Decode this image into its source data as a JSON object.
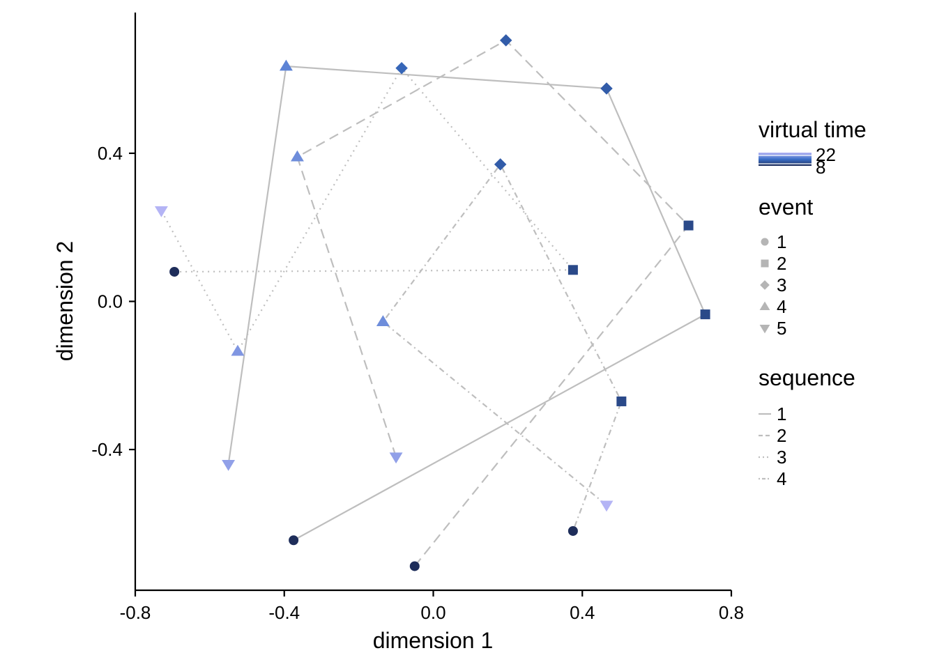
{
  "chart_data": {
    "type": "scatter",
    "xlabel": "dimension 1",
    "ylabel": "dimension 2",
    "xlim": [
      -0.8,
      0.8
    ],
    "ylim": [
      -0.78,
      0.78
    ],
    "x_ticks": [
      -0.8,
      -0.4,
      0.0,
      0.4,
      0.8
    ],
    "x_tick_labels": [
      "-0.8",
      "-0.4",
      "0.0",
      "0.4",
      "0.8"
    ],
    "y_ticks": [
      -0.4,
      0.0,
      0.4
    ],
    "y_tick_labels": [
      "-0.4",
      "0.0",
      "0.4"
    ],
    "grid": false,
    "line_color": "#bebebe",
    "color_scale": {
      "low": 8,
      "high": 22,
      "low_color": "#1e2d5a",
      "mid_color": "#3a6fc8",
      "high_color": "#b4b4f5"
    },
    "series": [
      {
        "name": "1",
        "linetype": "solid",
        "points": [
          {
            "x": -0.375,
            "y": -0.645,
            "event": 1,
            "time": 8
          },
          {
            "x": 0.73,
            "y": -0.035,
            "event": 2,
            "time": 11
          },
          {
            "x": 0.465,
            "y": 0.575,
            "event": 3,
            "time": 13
          },
          {
            "x": -0.395,
            "y": 0.635,
            "event": 4,
            "time": 17
          },
          {
            "x": -0.55,
            "y": -0.44,
            "event": 5,
            "time": 20
          }
        ]
      },
      {
        "name": "2",
        "linetype": "dashed",
        "points": [
          {
            "x": -0.05,
            "y": -0.715,
            "event": 1,
            "time": 8
          },
          {
            "x": 0.685,
            "y": 0.205,
            "event": 2,
            "time": 11
          },
          {
            "x": 0.195,
            "y": 0.705,
            "event": 3,
            "time": 13
          },
          {
            "x": -0.365,
            "y": 0.39,
            "event": 4,
            "time": 18
          },
          {
            "x": -0.1,
            "y": -0.42,
            "event": 5,
            "time": 20
          }
        ]
      },
      {
        "name": "3",
        "linetype": "dotted",
        "points": [
          {
            "x": -0.695,
            "y": 0.08,
            "event": 1,
            "time": 8
          },
          {
            "x": 0.375,
            "y": 0.085,
            "event": 2,
            "time": 11
          },
          {
            "x": -0.085,
            "y": 0.63,
            "event": 3,
            "time": 14
          },
          {
            "x": -0.525,
            "y": -0.135,
            "event": 4,
            "time": 19
          },
          {
            "x": -0.73,
            "y": 0.245,
            "event": 5,
            "time": 22
          }
        ]
      },
      {
        "name": "4",
        "linetype": "dotdash",
        "points": [
          {
            "x": 0.375,
            "y": -0.62,
            "event": 1,
            "time": 8
          },
          {
            "x": 0.505,
            "y": -0.27,
            "event": 2,
            "time": 11
          },
          {
            "x": 0.18,
            "y": 0.37,
            "event": 3,
            "time": 13
          },
          {
            "x": -0.135,
            "y": -0.055,
            "event": 4,
            "time": 18
          },
          {
            "x": 0.465,
            "y": -0.55,
            "event": 5,
            "time": 22
          }
        ]
      }
    ],
    "legend": {
      "position": "right",
      "color_title": "virtual time",
      "color_labels": [
        "22",
        "8"
      ],
      "shape_title": "event",
      "shape_labels": [
        "1",
        "2",
        "3",
        "4",
        "5"
      ],
      "linetype_title": "sequence",
      "linetype_labels": [
        "1",
        "2",
        "3",
        "4"
      ]
    }
  }
}
